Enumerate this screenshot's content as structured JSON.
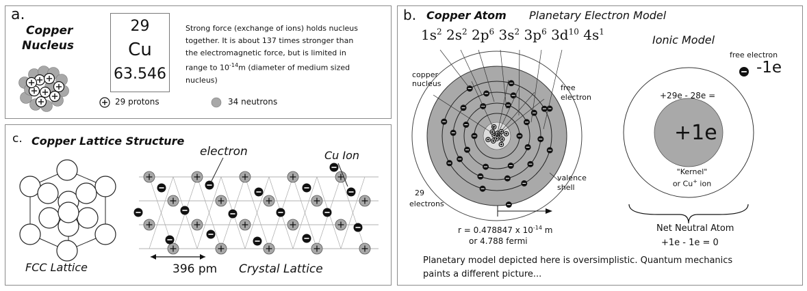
{
  "panel_a": {
    "label": "a.",
    "title_line1": "Copper",
    "title_line2": "Nucleus",
    "element": {
      "number": "29",
      "symbol": "Cu",
      "mass": "63.546"
    },
    "description": [
      "Strong force (exchange of ions) holds nucleus",
      "together.  It is about 137 times stronger than",
      "the electromagnetic force, but is limited in",
      "range to  10",
      "-14",
      "m (diameter of medium sized",
      "nucleus)"
    ],
    "legend_protons": "29 protons",
    "legend_neutrons": "34 neutrons"
  },
  "panel_b": {
    "label": "b.",
    "title": "Copper Atom",
    "subtitle": "Planetary Electron Model",
    "config": [
      "1s",
      "2",
      "2s",
      "2",
      "2p",
      "6",
      "3s",
      "2",
      "3p",
      "6",
      "3d",
      "10",
      "4s",
      "1"
    ],
    "copper_nucleus_label": [
      "copper",
      "nucleus"
    ],
    "free_electron_label": [
      "free",
      "electron"
    ],
    "valence_label": [
      "valence",
      "shell"
    ],
    "electrons_label": [
      "29",
      "electrons"
    ],
    "radius_line1": "r = 0.478847 x 10",
    "radius_exp": "-14",
    "radius_unit": " m",
    "radius_line2": "or 4.788 fermi",
    "ionic_title": "Ionic Model",
    "ionic_free_electron": "free electron",
    "ionic_charge": "-1e",
    "ionic_equation": "+29e - 28e =",
    "kernel_charge": "+1e",
    "kernel_label1": "\"Kernel\"",
    "kernel_label2_a": "or Cu",
    "kernel_label2_sup": "+",
    "kernel_label2_b": " ion",
    "neutral_title": "Net Neutral Atom",
    "neutral_equation": "+1e - 1e = 0",
    "footer_line1": "Planetary model depicted here is oversimplistic.  Quantum mechanics",
    "footer_line2": "paints a different picture..."
  },
  "panel_c": {
    "label": "c.",
    "title": "Copper Lattice Structure",
    "electron_label": "electron",
    "cu_ion_label": "Cu Ion",
    "fcc_label": "FCC Lattice",
    "spacing_label": "396 pm",
    "crystal_label": "Crystal Lattice"
  },
  "colors": {
    "nucleon": "#a8a8a8",
    "shell_fill": "#a9a9a9",
    "electron": "#111111",
    "border": "#8a8a8a"
  }
}
